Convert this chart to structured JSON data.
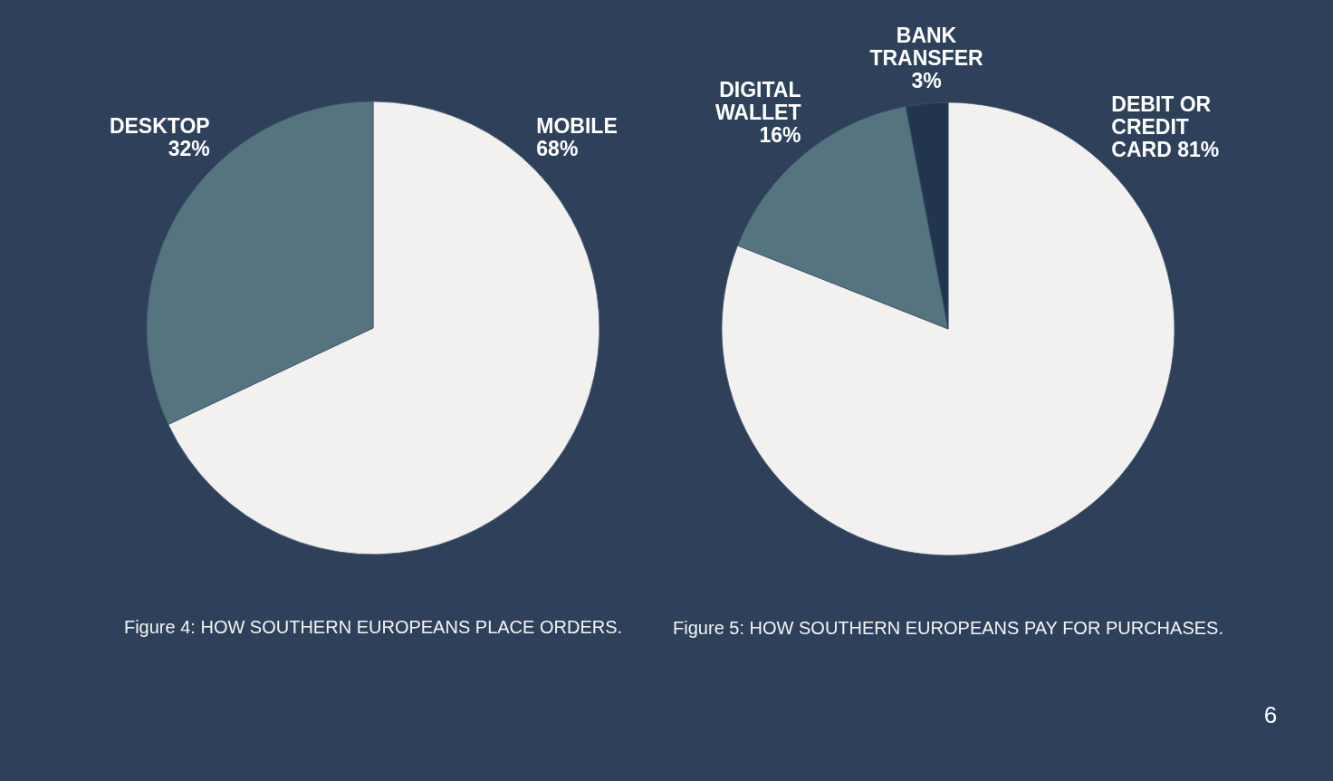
{
  "chart_data": [
    {
      "type": "pie",
      "title": "Figure 4: HOW SOUTHERN EUROPEANS PLACE ORDERS.",
      "categories": [
        "MOBILE",
        "DESKTOP"
      ],
      "values": [
        68,
        32
      ],
      "colors": [
        "#f2f1ef",
        "#55747f"
      ],
      "value_labels": [
        "68%",
        "32%"
      ]
    },
    {
      "type": "pie",
      "title": "Figure 5: HOW SOUTHERN EUROPEANS PAY FOR PURCHASES.",
      "categories": [
        "DEBIT OR CREDIT CARD",
        "DIGITAL WALLET",
        "BANK TRANSFER"
      ],
      "values": [
        81,
        16,
        3
      ],
      "colors": [
        "#f2f1ef",
        "#55747f",
        "#22354f"
      ],
      "value_labels": [
        "81%",
        "16%",
        "3%"
      ],
      "annotations": [
        "6"
      ]
    }
  ]
}
